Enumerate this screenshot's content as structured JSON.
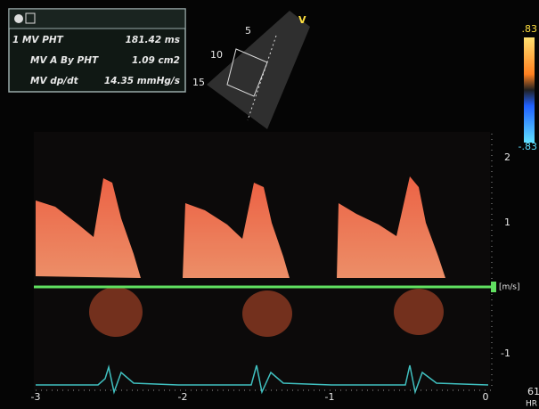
{
  "measurements": {
    "rows": [
      {
        "label": "1 MV PHT",
        "value": "181.42 ms"
      },
      {
        "label": "MV A By PHT",
        "value": "1.09 cm2"
      },
      {
        "label": "MV dp/dt",
        "value": "14.35 mmHg/s"
      }
    ]
  },
  "sector": {
    "depth_marks": [
      "5",
      "10",
      "15"
    ],
    "marker": "V"
  },
  "color_scale": {
    "max": ".83",
    "min": "-.83"
  },
  "velocity_axis": {
    "ticks": [
      "2",
      "1",
      "-1"
    ],
    "unit": "[m/s]"
  },
  "time_axis": {
    "ticks": [
      "-3",
      "-2",
      "-1",
      "0"
    ]
  },
  "heart_rate": {
    "value": "61",
    "unit": "HR"
  }
}
